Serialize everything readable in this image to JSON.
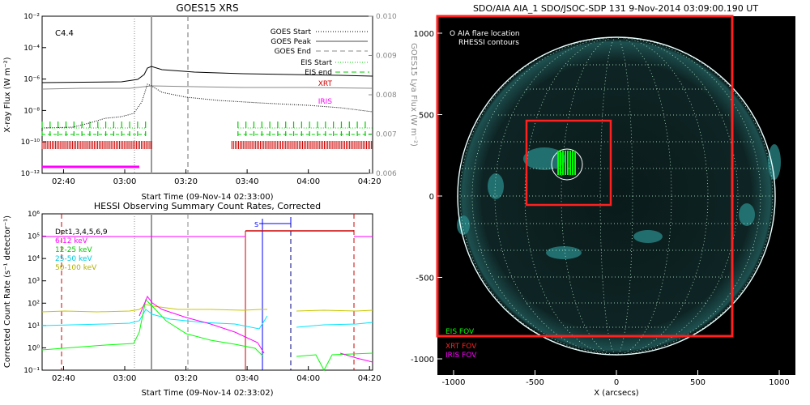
{
  "chart_data": [
    {
      "type": "line",
      "title": "GOES15 XRS",
      "xlabel": "Start Time (09-Nov-14 02:33:00)",
      "ylabel_left": "X-ray Flux (W m⁻²)",
      "ylabel_right": "GOES15 Lya Flux (W m⁻²)",
      "x_tick_labels": [
        "02:40",
        "03:00",
        "03:20",
        "03:40",
        "04:00",
        "04:20"
      ],
      "x_ticks_min": [
        7,
        27,
        47,
        67,
        87,
        107
      ],
      "xlim_min": [
        0,
        108
      ],
      "ylim_left": [
        1e-12,
        0.01
      ],
      "yscale_left": "log",
      "y_tick_labels_left": [
        "10⁻¹²",
        "10⁻¹⁰",
        "10⁻⁸",
        "10⁻⁶",
        "10⁻⁴",
        "10⁻²"
      ],
      "ylim_right": [
        0.006,
        0.01
      ],
      "y_tick_labels_right": [
        "0.006",
        "0.007",
        "0.008",
        "0.009",
        "0.010"
      ],
      "class_annotation": "C4.4",
      "events_min": {
        "goes_start": 25,
        "goes_peak": 29,
        "goes_end": 43
      },
      "legend": [
        "GOES Start",
        "GOES Peak",
        "GOES End",
        "EIS Start",
        "EIS end",
        "XRT",
        "IRIS"
      ],
      "series": [
        {
          "name": "XRT",
          "color": "#cc0000",
          "coverage_min": [
            [
              0,
              36
            ],
            [
              62,
              108
            ]
          ]
        },
        {
          "name": "IRIS",
          "color": "#ff00ff",
          "coverage_min": [
            [
              0,
              24
            ]
          ]
        },
        {
          "name": "EIS Start",
          "color": "#00cc00",
          "coverage_min": [
            [
              0,
              34
            ],
            [
              64,
              108
            ]
          ]
        }
      ]
    },
    {
      "type": "line",
      "title": "HESSI Observing Summary Count Rates, Corrected",
      "xlabel": "Start Time (09-Nov-14 02:33:02)",
      "ylabel": "Corrected Count Rate (s⁻¹ detector⁻¹)",
      "x_tick_labels": [
        "02:40",
        "03:00",
        "03:20",
        "03:40",
        "04:00",
        "04:20"
      ],
      "x_ticks_min": [
        7,
        27,
        47,
        67,
        87,
        107
      ],
      "xlim_min": [
        0,
        108
      ],
      "ylim": [
        0.1,
        1000000.0
      ],
      "yscale": "log",
      "y_tick_labels": [
        "10⁻¹",
        "10⁰",
        "10¹",
        "10²",
        "10³",
        "10⁴",
        "10⁵",
        "10⁶"
      ],
      "annotation_S": "S",
      "legend_title": "Det1,3,4,5,6,9",
      "series": [
        {
          "name": "6-12 keV",
          "color": "#ff00ff"
        },
        {
          "name": "12-25 keV",
          "color": "#00ff00"
        },
        {
          "name": "25-50 keV",
          "color": "#00e5ff"
        },
        {
          "name": "50-100 keV",
          "color": "#c8c800"
        }
      ],
      "attenuator_level": 100000
    },
    {
      "type": "image",
      "title": "SDO/AIA AIA_1 SDO/JSOC-SDP 131  9-Nov-2014 03:09:00.190 UT",
      "xlabel": "X (arcsecs)",
      "x_tick_labels": [
        "-1000",
        "-500",
        "0",
        "500",
        "1000"
      ],
      "y_tick_labels": [
        "1000",
        "500",
        "0",
        "-500",
        "-1000"
      ],
      "xlim": [
        -1100,
        1100
      ],
      "ylim": [
        -1100,
        1100
      ],
      "legend_top": [
        "O AIA flare location",
        "RHESSI contours"
      ],
      "legend_bottom": [
        {
          "label": "EIS FOV",
          "color": "#00ff00"
        },
        {
          "label": "XRT FOV",
          "color": "#ff2020"
        },
        {
          "label": "IRIS FOV",
          "color": "#ff00ff"
        }
      ],
      "flare_location_arcsec": [
        -300,
        190
      ],
      "fov_boxes_arcsec": {
        "xrt_large": [
          -1100,
          -880,
          710,
          1100
        ],
        "xrt_small": [
          -560,
          -70,
          -20,
          450
        ]
      }
    }
  ]
}
